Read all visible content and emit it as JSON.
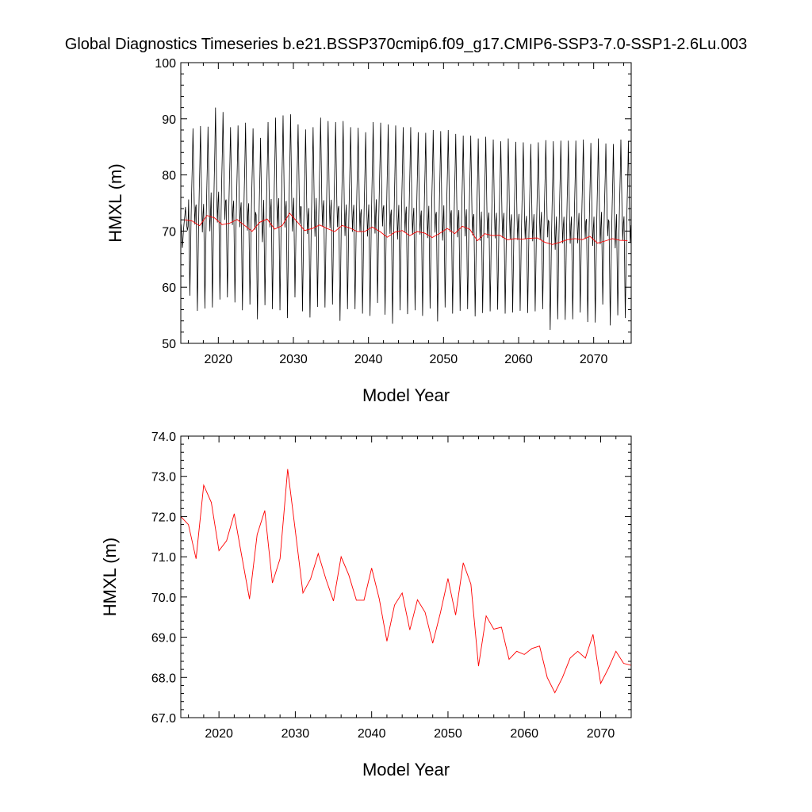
{
  "title": "Global Diagnostics Timeseries b.e21.BSSP370cmip6.f09_g17.CMIP6-SSP3-7.0-SSP1-2.6Lu.003",
  "colors": {
    "monthly": "#000000",
    "annual": "#ff0000",
    "frame": "#000000"
  },
  "chart_data": [
    {
      "type": "line",
      "xlabel": "Model Year",
      "ylabel": "HMXL (m)",
      "xlim": [
        2015,
        2075
      ],
      "ylim": [
        50,
        100
      ],
      "xticks": [
        2020,
        2030,
        2040,
        2050,
        2060,
        2070
      ],
      "xtick_labels": [
        "2020",
        "2030",
        "2040",
        "2050",
        "2060",
        "2070"
      ],
      "yticks": [
        50,
        60,
        70,
        80,
        90,
        100
      ],
      "ytick_labels": [
        "50",
        "60",
        "70",
        "80",
        "90",
        "100"
      ],
      "grid": false,
      "series": [
        {
          "style": "monthly",
          "x_start": 2015.0417,
          "x_step": 0.0833333,
          "annual_max": [
            74.3,
            88.3,
            88.7,
            88.6,
            92.0,
            91.2,
            88.5,
            88.8,
            89.3,
            88.3,
            86.6,
            89.4,
            90.2,
            90.6,
            90.8,
            89.0,
            88.1,
            88.5,
            90.2,
            89.6,
            89.4,
            89.6,
            88.5,
            88.4,
            87.6,
            89.4,
            89.3,
            89.0,
            88.8,
            88.5,
            88.5,
            87.6,
            87.5,
            88.0,
            87.8,
            88.0,
            87.3,
            87.0,
            87.0,
            86.5,
            86.8,
            86.3,
            86.0,
            86.5,
            85.9,
            85.8,
            85.5,
            85.8,
            86.2,
            86.0,
            86.1,
            86.1,
            86.1,
            86.3,
            85.7,
            86.5,
            85.6,
            85.5,
            86.3,
            86.0
          ],
          "annual_min": [
            67.0,
            58.5,
            55.8,
            56.2,
            56.4,
            57.8,
            58.2,
            57.3,
            55.9,
            56.9,
            54.3,
            56.8,
            56.1,
            55.9,
            54.5,
            58.2,
            55.7,
            54.6,
            56.5,
            56.4,
            56.9,
            54.0,
            56.1,
            56.1,
            55.3,
            54.9,
            57.2,
            55.1,
            53.5,
            55.9,
            55.2,
            55.9,
            54.9,
            56.2,
            53.9,
            56.4,
            55.3,
            55.8,
            56.1,
            54.8,
            55.4,
            55.7,
            56.0,
            55.3,
            55.5,
            55.8,
            55.4,
            55.7,
            56.1,
            52.4,
            54.3,
            54.2,
            54.3,
            55.5,
            53.8,
            53.7,
            56.9,
            53.2,
            55.0,
            54.5
          ]
        },
        {
          "style": "annual",
          "x": [
            2015.5,
            2016.5,
            2017.5,
            2018.5,
            2019.5,
            2020.5,
            2021.5,
            2022.5,
            2023.5,
            2024.5,
            2025.5,
            2026.5,
            2027.5,
            2028.5,
            2029.5,
            2030.5,
            2031.5,
            2032.5,
            2033.5,
            2034.5,
            2035.5,
            2036.5,
            2037.5,
            2038.5,
            2039.5,
            2040.5,
            2041.5,
            2042.5,
            2043.5,
            2044.5,
            2045.5,
            2046.5,
            2047.5,
            2048.5,
            2049.5,
            2050.5,
            2051.5,
            2052.5,
            2053.5,
            2054.5,
            2055.5,
            2056.5,
            2057.5,
            2058.5,
            2059.5,
            2060.5,
            2061.5,
            2062.5,
            2063.5,
            2064.5,
            2065.5,
            2066.5,
            2067.5,
            2068.5,
            2069.5,
            2070.5,
            2071.5,
            2072.5,
            2073.5,
            2074.5
          ],
          "y": [
            72.0,
            71.8,
            70.95,
            72.78,
            72.35,
            71.15,
            71.4,
            72.07,
            71.0,
            69.95,
            71.55,
            72.15,
            70.35,
            70.95,
            73.18,
            71.65,
            70.1,
            70.45,
            71.08,
            70.45,
            69.9,
            71.0,
            70.55,
            69.92,
            69.92,
            70.72,
            69.95,
            68.9,
            69.8,
            70.1,
            69.18,
            69.93,
            69.62,
            68.85,
            69.6,
            70.46,
            69.55,
            70.85,
            70.32,
            68.28,
            69.53,
            69.2,
            69.25,
            68.45,
            68.65,
            68.57,
            68.72,
            68.78,
            68.0,
            67.62,
            68.0,
            68.48,
            68.65,
            68.48,
            69.07,
            67.85,
            68.22,
            68.65,
            68.35,
            68.3
          ]
        }
      ]
    },
    {
      "type": "line",
      "xlabel": "Model Year",
      "ylabel": "HMXL (m)",
      "xlim": [
        2015,
        2074
      ],
      "ylim": [
        67.0,
        74.0
      ],
      "xticks": [
        2020,
        2030,
        2040,
        2050,
        2060,
        2070
      ],
      "xtick_labels": [
        "2020",
        "2030",
        "2040",
        "2050",
        "2060",
        "2070"
      ],
      "yticks": [
        67.0,
        68.0,
        69.0,
        70.0,
        71.0,
        72.0,
        73.0,
        74.0
      ],
      "ytick_labels": [
        "67.0",
        "68.0",
        "69.0",
        "70.0",
        "71.0",
        "72.0",
        "73.0",
        "74.0"
      ],
      "grid": false,
      "series": [
        {
          "style": "annual",
          "x": [
            2015,
            2016,
            2017,
            2018,
            2019,
            2020,
            2021,
            2022,
            2023,
            2024,
            2025,
            2026,
            2027,
            2028,
            2029,
            2030,
            2031,
            2032,
            2033,
            2034,
            2035,
            2036,
            2037,
            2038,
            2039,
            2040,
            2041,
            2042,
            2043,
            2044,
            2045,
            2046,
            2047,
            2048,
            2049,
            2050,
            2051,
            2052,
            2053,
            2054,
            2055,
            2056,
            2057,
            2058,
            2059,
            2060,
            2061,
            2062,
            2063,
            2064,
            2065,
            2066,
            2067,
            2068,
            2069,
            2070,
            2071,
            2072,
            2073,
            2074
          ],
          "y": [
            72.0,
            71.8,
            70.95,
            72.78,
            72.35,
            71.15,
            71.4,
            72.07,
            71.0,
            69.95,
            71.55,
            72.15,
            70.35,
            70.95,
            73.18,
            71.65,
            70.1,
            70.45,
            71.08,
            70.45,
            69.9,
            71.0,
            70.55,
            69.92,
            69.92,
            70.72,
            69.95,
            68.9,
            69.8,
            70.1,
            69.18,
            69.93,
            69.62,
            68.85,
            69.6,
            70.46,
            69.55,
            70.85,
            70.32,
            68.28,
            69.53,
            69.2,
            69.25,
            68.45,
            68.65,
            68.57,
            68.72,
            68.78,
            68.0,
            67.62,
            68.0,
            68.48,
            68.65,
            68.48,
            69.07,
            67.85,
            68.22,
            68.65,
            68.35,
            68.3
          ]
        }
      ]
    }
  ]
}
